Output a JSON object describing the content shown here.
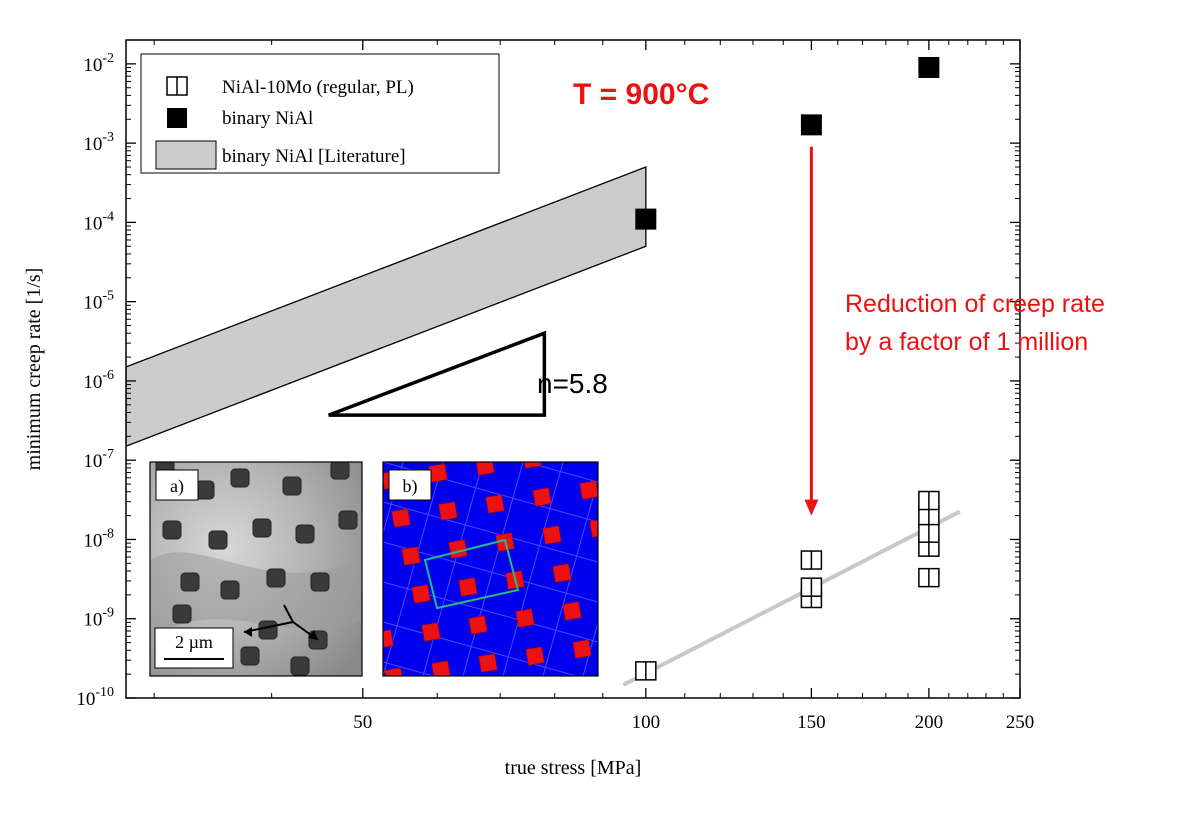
{
  "chart_data": {
    "type": "scatter",
    "xscale": "log",
    "yscale": "log",
    "xlim": [
      28,
      250
    ],
    "ylim": [
      1e-10,
      0.02
    ],
    "xlabel": "true stress [MPa]",
    "ylabel": "minimum creep rate [1/s]",
    "xticks": [
      {
        "value": 50,
        "label": "50"
      },
      {
        "value": 100,
        "label": "100"
      },
      {
        "value": 150,
        "label": "150"
      },
      {
        "value": 200,
        "label": "200"
      },
      {
        "value": 250,
        "label": "250"
      }
    ],
    "yticks": [
      {
        "value": 1e-10,
        "base": "10",
        "exp": "-10"
      },
      {
        "value": 1e-09,
        "base": "10",
        "exp": "-9"
      },
      {
        "value": 1e-08,
        "base": "10",
        "exp": "-8"
      },
      {
        "value": 1e-07,
        "base": "10",
        "exp": "-7"
      },
      {
        "value": 1e-06,
        "base": "10",
        "exp": "-6"
      },
      {
        "value": 1e-05,
        "base": "10",
        "exp": "-5"
      },
      {
        "value": 0.0001,
        "base": "10",
        "exp": "-4"
      },
      {
        "value": 0.001,
        "base": "10",
        "exp": "-3"
      },
      {
        "value": 0.01,
        "base": "10",
        "exp": "-2"
      }
    ],
    "series": [
      {
        "name": "NiAl-10Mo (regular, PL)",
        "marker": "open-square-cross",
        "points": [
          [
            100,
            2.2e-10
          ],
          [
            150,
            1.8e-09
          ],
          [
            150,
            2.5e-09
          ],
          [
            150,
            5.5e-09
          ],
          [
            200,
            3.3e-09
          ],
          [
            200,
            8e-09
          ],
          [
            200,
            1.2e-08
          ],
          [
            200,
            2e-08
          ],
          [
            200,
            3.1e-08
          ]
        ]
      },
      {
        "name": "binary NiAl",
        "marker": "filled-square",
        "points": [
          [
            100,
            0.00011
          ],
          [
            150,
            0.0017
          ],
          [
            200,
            0.009
          ]
        ]
      },
      {
        "name": "binary NiAl [Literature]",
        "marker": "band",
        "band": {
          "x": [
            28,
            100
          ],
          "upper": [
            1.5e-06,
            0.0005
          ],
          "lower": [
            1.5e-07,
            5e-05
          ]
        }
      }
    ],
    "fit_line": {
      "x": [
        95,
        215
      ],
      "y": [
        1.5e-10,
        2.2e-08
      ]
    },
    "slope_triangle": {
      "label": "n=5.8",
      "x": [
        46,
        78
      ],
      "y_low": 3.7e-07,
      "y_high": 4e-06
    },
    "annotations": {
      "temperature": "T = 900°C",
      "reduction_line1": "Reduction of creep rate",
      "reduction_line2": "by a factor of 1 million",
      "arrow": {
        "x": 150,
        "from_y": 0.0009,
        "to_y": 2e-08
      }
    },
    "insets": [
      {
        "label": "a)",
        "scale_bar": "2 µm",
        "type": "micrograph"
      },
      {
        "label": "b)",
        "type": "simulation-lattice"
      }
    ],
    "legend_position": "top-left"
  },
  "colors": {
    "red": "#ee1111",
    "band": "#cccccc",
    "fit": "#c8c8c8",
    "inset_b_bg": "#0000ee",
    "inset_b_squares": "#ee1111",
    "inset_b_box": "#22bb88"
  }
}
